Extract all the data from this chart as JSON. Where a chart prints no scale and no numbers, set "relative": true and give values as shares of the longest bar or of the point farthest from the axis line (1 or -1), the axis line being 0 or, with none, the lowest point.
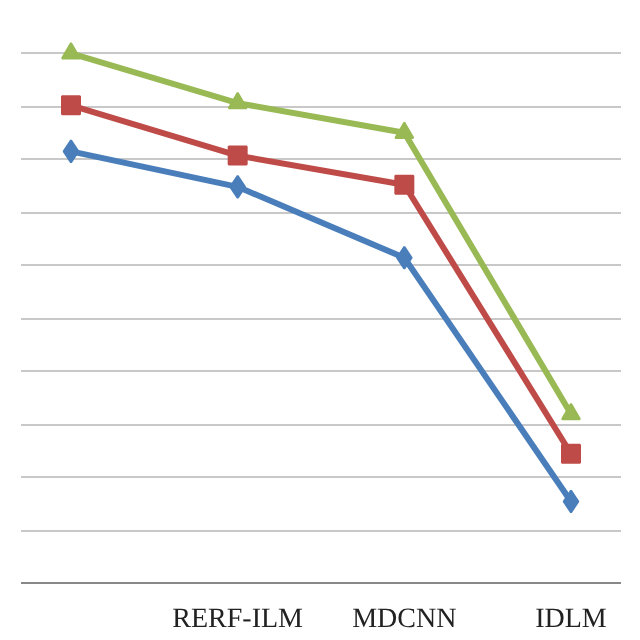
{
  "chart_data": {
    "type": "line",
    "relative": true,
    "grid": "y",
    "categories": [
      null,
      "RERF-ILM",
      "MDCNN",
      "IDLM"
    ],
    "series": [
      {
        "color": "#98b954",
        "marker": "triangle",
        "values": [
          1,
          0.906,
          0.85,
          0.319
        ]
      },
      {
        "color": "#be4b48",
        "marker": "square",
        "values": [
          0.902,
          0.807,
          0.752,
          0.244
        ]
      },
      {
        "color": "#4a7ebb",
        "marker": "diamond",
        "values": [
          0.815,
          0.748,
          0.614,
          0.154
        ]
      }
    ]
  }
}
